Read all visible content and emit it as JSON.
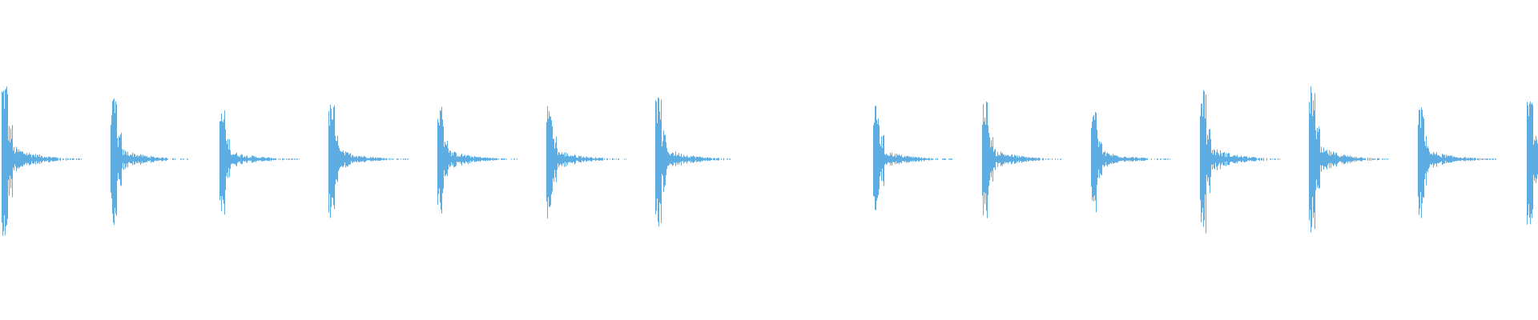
{
  "waveform": {
    "color": "#5dade2",
    "background": "#ffffff",
    "amplitude_range": [
      -1,
      1
    ],
    "slots": [
      {
        "peak": 0.5
      },
      {
        "peak": 0.38
      },
      {
        "peak": 0.31
      },
      {
        "peak": 0.35
      },
      {
        "peak": 0.34
      },
      {
        "peak": 0.34
      },
      {
        "peak": 0.4
      },
      {
        "peak": 0
      },
      {
        "peak": 0.34
      },
      {
        "peak": 0.38
      },
      {
        "peak": 0.31
      },
      {
        "peak": 0.46
      },
      {
        "peak": 0.46
      },
      {
        "peak": 0.33
      },
      {
        "peak": 0.42
      }
    ]
  }
}
